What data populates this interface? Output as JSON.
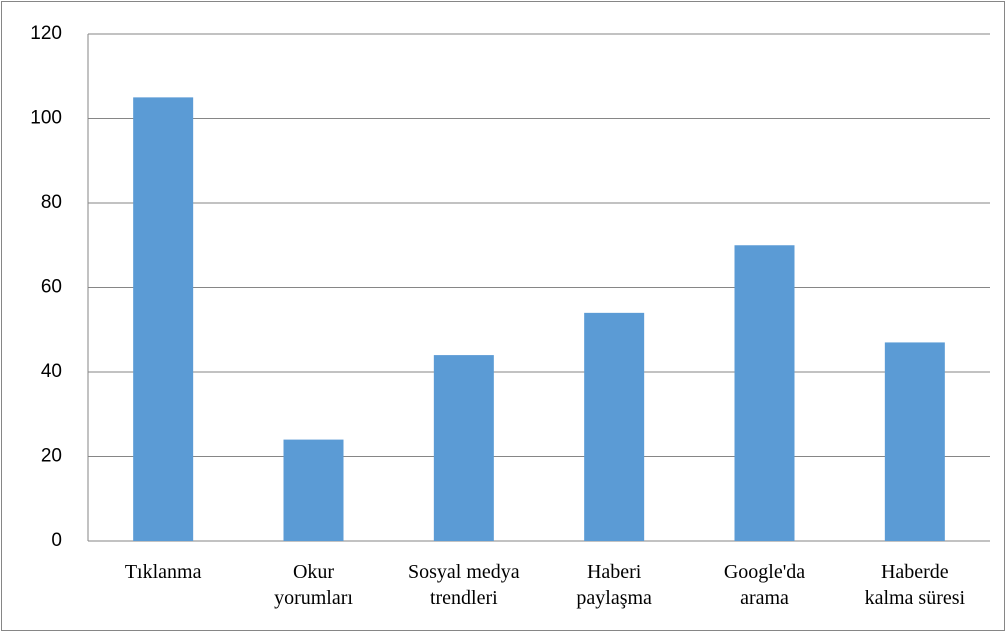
{
  "chart_data": {
    "type": "bar",
    "categories": [
      "Tıklanma",
      "Okur\nyorumları",
      "Sosyal medya\ntrendleri",
      "Haberi\npaylaşma",
      "Google'da\narama",
      "Haberde\nkalma süresi"
    ],
    "values": [
      105,
      24,
      44,
      54,
      70,
      47
    ],
    "color": "#5b9bd5",
    "ylim": [
      0,
      120
    ],
    "yticks": [
      0,
      20,
      40,
      60,
      80,
      100,
      120
    ],
    "grid": true
  }
}
